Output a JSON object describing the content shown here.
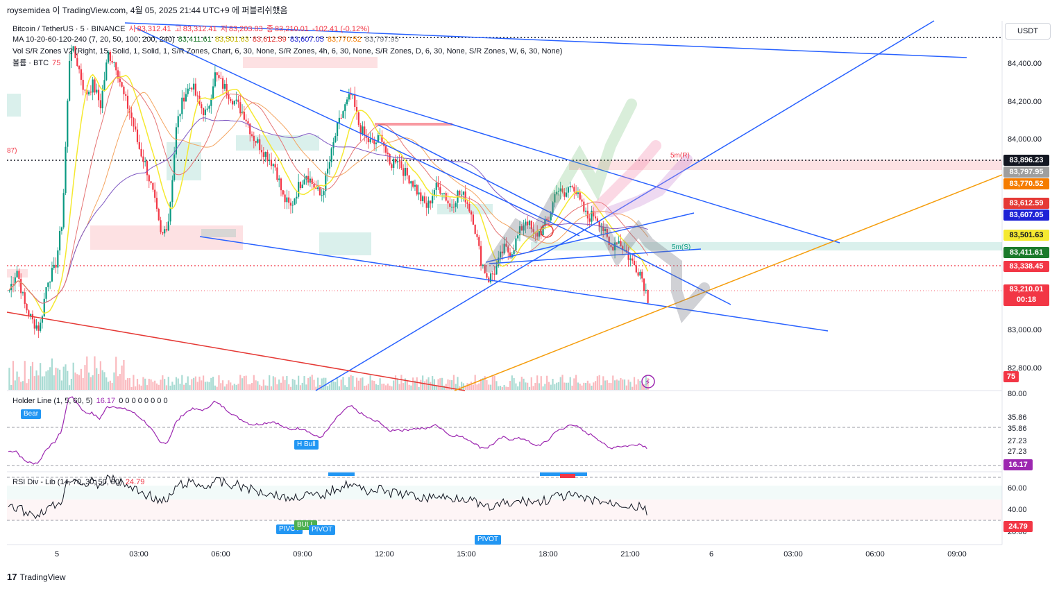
{
  "header": {
    "topline": "roysemidea 이 TradingView.com, 4월 05, 2025 21:44 UTC+9 에 퍼블리쉬했음",
    "symbol": "Bitcoin / TetherUS · 5 · BINANCE",
    "ohlc": {
      "o_label": "시",
      "o": "83,312.41",
      "h_label": "고",
      "h": "83,312.41",
      "l_label": "저",
      "l": "83,203.83",
      "c_label": "종",
      "c": "83,210.01",
      "chg": "-102.41 (-0.12%)"
    },
    "ma_title": "MA 10-20-60-120-240 (7, 20, 50, 100, 200, 240)",
    "ma_values": [
      "83,411.61",
      "83,501.63",
      "83,612.59",
      "83,607.05",
      "83,770.52",
      "83,797.95"
    ],
    "vol_sr": "Vol S/R Zones V2 (Right, 15, Solid, 1, Solid, 1, S/R Zones, Chart, 6, 30, None, S/R Zones, 4h, 6, 30, None, S/R Zones, D, 6, 30, None, S/R Zones, W, 6, 30, None)",
    "volume_label": "볼륨 · BTC",
    "volume_value": "75",
    "holder_line": "Holder Line (1, 5, 60, 5)",
    "holder_value": "16.17",
    "holder_zeros": "0 0 0 0 0 0 0 0",
    "rsi_title": "RSI Div - Lib (14, 70, 30, 50, 90)",
    "rsi_value": "24.79"
  },
  "currency": "USDT",
  "colors": {
    "up": "#089981",
    "down": "#f23645",
    "trendline": "#2962ff",
    "orange": "#f59d0c",
    "red_line": "#e53935",
    "ma_yellow": "#f5e930",
    "ma_orange": "#f4a460",
    "ma_purple": "#7e57c2",
    "ma_red": "#e57373"
  },
  "chart_data": [
    {
      "type": "candlestick",
      "title": "Bitcoin / TetherUS · 5 · BINANCE",
      "yaxis_ticks": [
        "84,400.00",
        "84,200.00",
        "84,000.00",
        "83,000.00",
        "82,800.00"
      ],
      "ylim": [
        82760,
        84560
      ],
      "x_ticks": [
        "5",
        "03:00",
        "06:00",
        "09:00",
        "12:00",
        "15:00",
        "18:00",
        "21:00",
        "6",
        "03:00",
        "06:00",
        "09:00"
      ],
      "price_tags": [
        {
          "value": "83,896.23",
          "color": "#131722"
        },
        {
          "value": "83,797.95",
          "color": "#9e9e9e"
        },
        {
          "value": "83,770.52",
          "color": "#f57c00"
        },
        {
          "value": "83,612.59",
          "color": "#e53935"
        },
        {
          "value": "83,607.05",
          "color": "#1e22d6"
        },
        {
          "value": "83,501.63",
          "color": "#f5e930"
        },
        {
          "value": "83,411.61",
          "color": "#1b7a2b"
        },
        {
          "value": "83,338.45",
          "color": "#f23645"
        },
        {
          "value": "83,210.01",
          "color": "#f23645"
        }
      ],
      "countdown": "00:18",
      "annotations": [
        "5m(R)",
        "5m(S)"
      ],
      "close_path": [
        83250,
        83350,
        83180,
        83100,
        83060,
        83300,
        83350,
        83600,
        84450,
        84350,
        84200,
        84250,
        84150,
        84400,
        84350,
        84200,
        84100,
        83950,
        83850,
        83700,
        83500,
        83600,
        84050,
        84200,
        84250,
        84150,
        84100,
        84300,
        84250,
        84200,
        84150,
        84100,
        84000,
        83950,
        83900,
        83850,
        83700,
        83650,
        83750,
        83820,
        83760,
        83700,
        83850,
        84020,
        84130,
        84200,
        84050,
        83980,
        83960,
        84000,
        83850,
        83900,
        83820,
        83780,
        83700,
        83650,
        83750,
        83740,
        83650,
        83720,
        83700,
        83600,
        83400,
        83300,
        83350,
        83450,
        83430,
        83520,
        83600,
        83510,
        83540,
        83600,
        83750,
        83700,
        83780,
        83680,
        83600,
        83620,
        83560,
        83450,
        83500,
        83440,
        83380,
        83338,
        83210
      ]
    },
    {
      "type": "line",
      "title": "Holder Line (1, 5, 60, 5)",
      "yaxis_ticks": [
        "80.00",
        "35.86",
        "35.86",
        "27.23",
        "27.23"
      ],
      "last_value": "16.17",
      "labels": [
        "Bear",
        "H Bull"
      ]
    },
    {
      "type": "line",
      "title": "RSI Div - Lib (14, 70, 30, 50, 90)",
      "yaxis_ticks": [
        "60.00",
        "40.00",
        "20.00"
      ],
      "last_value": "24.79",
      "labels": [
        "PIVOT",
        "BULL",
        "PIVOT",
        "PIVOT"
      ]
    }
  ],
  "footer": {
    "brand": "TradingView"
  }
}
